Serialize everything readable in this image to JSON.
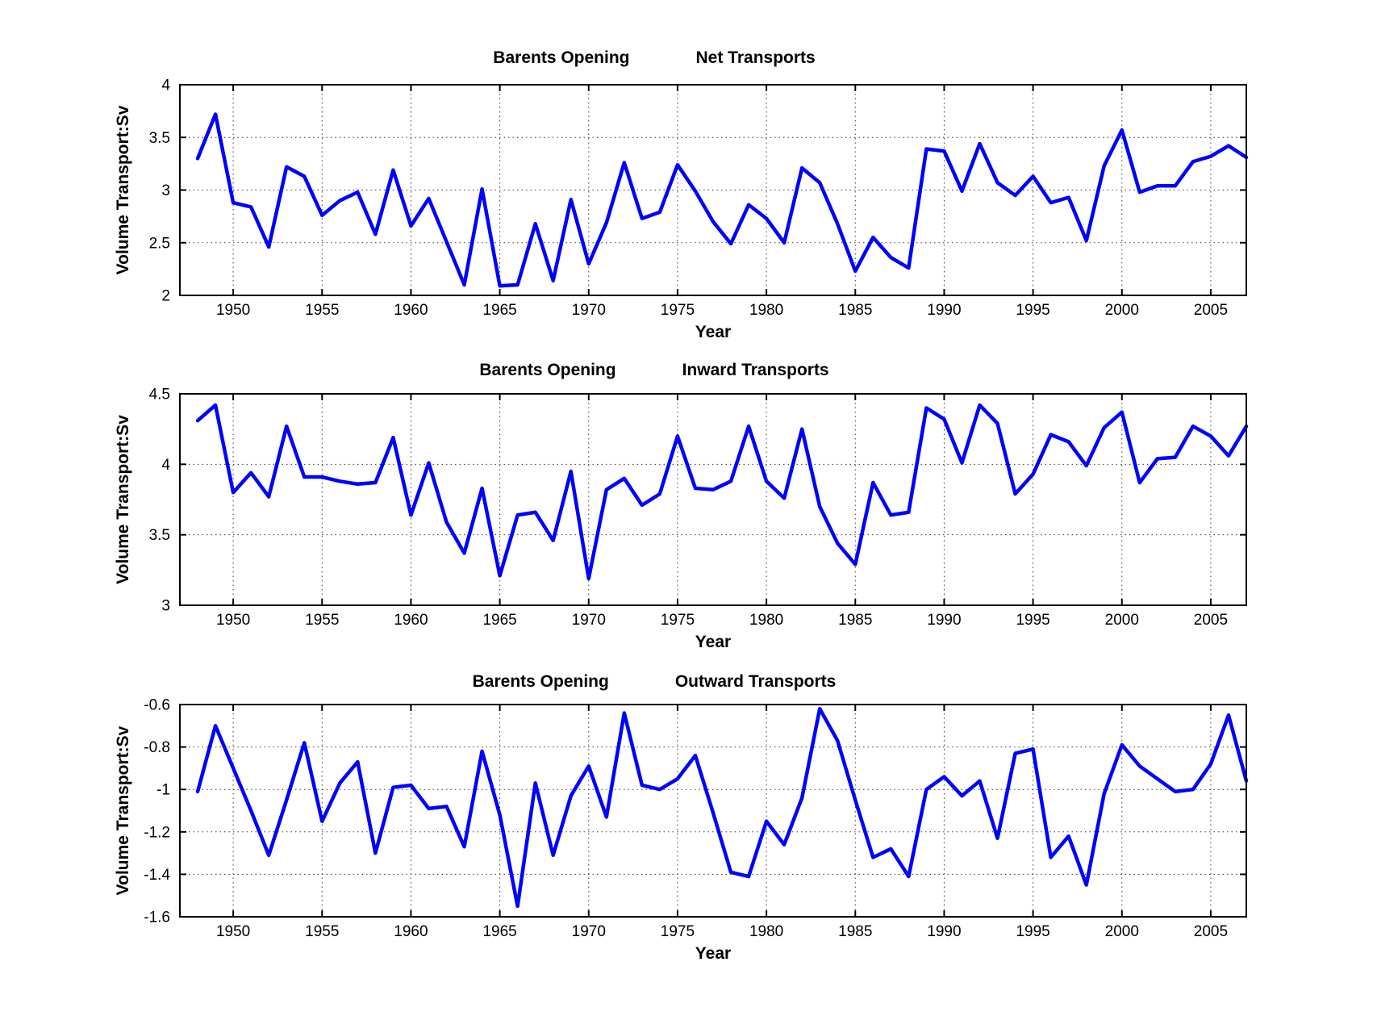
{
  "colors": {
    "background": "#ffffff",
    "line": "#0000ff",
    "axis": "#000000",
    "grid": "#3a3a3a"
  },
  "chart_data": [
    {
      "type": "line",
      "title_left": "Barents Opening",
      "title_right": "Net Transports",
      "xlabel": "Year",
      "ylabel": "Volume Transport:Sv",
      "xlim": [
        1947,
        2007
      ],
      "ylim": [
        2,
        4
      ],
      "grid": true,
      "x_ticks": [
        1950,
        1955,
        1960,
        1965,
        1970,
        1975,
        1980,
        1985,
        1990,
        1995,
        2000,
        2005
      ],
      "y_ticks": [
        4,
        3.5,
        3,
        2.5,
        2
      ],
      "y_tick_labels": [
        "4",
        "3.5",
        "3",
        "2.5",
        "2"
      ],
      "years": [
        1948,
        1949,
        1950,
        1951,
        1952,
        1953,
        1954,
        1955,
        1956,
        1957,
        1958,
        1959,
        1960,
        1961,
        1962,
        1963,
        1964,
        1965,
        1966,
        1967,
        1968,
        1969,
        1970,
        1971,
        1972,
        1973,
        1974,
        1975,
        1976,
        1977,
        1978,
        1979,
        1980,
        1981,
        1982,
        1983,
        1984,
        1985,
        1986,
        1987,
        1988,
        1989,
        1990,
        1991,
        1992,
        1993,
        1994,
        1995,
        1996,
        1997,
        1998,
        1999,
        2000,
        2001,
        2002,
        2003,
        2004,
        2005,
        2006,
        2007
      ],
      "values": [
        3.3,
        3.72,
        2.88,
        2.84,
        2.46,
        3.22,
        3.13,
        2.76,
        2.9,
        2.98,
        2.58,
        3.19,
        2.66,
        2.92,
        2.51,
        2.1,
        3.01,
        2.09,
        2.1,
        2.68,
        2.14,
        2.91,
        2.3,
        2.69,
        3.26,
        2.73,
        2.79,
        3.24,
        2.99,
        2.7,
        2.49,
        2.86,
        2.73,
        2.5,
        3.21,
        3.07,
        2.68,
        2.23,
        2.55,
        2.36,
        2.26,
        3.39,
        3.37,
        2.99,
        3.44,
        3.07,
        2.95,
        3.13,
        2.88,
        2.93,
        2.52,
        3.23,
        3.57,
        2.98,
        3.04,
        3.04,
        3.27,
        3.32,
        3.42,
        3.31
      ]
    },
    {
      "type": "line",
      "title_left": "Barents Opening",
      "title_right": "Inward Transports",
      "xlabel": "Year",
      "ylabel": "Volume Transport:Sv",
      "xlim": [
        1947,
        2007
      ],
      "ylim": [
        3,
        4.5
      ],
      "grid": true,
      "x_ticks": [
        1950,
        1955,
        1960,
        1965,
        1970,
        1975,
        1980,
        1985,
        1990,
        1995,
        2000,
        2005
      ],
      "y_ticks": [
        4.5,
        4,
        3.5,
        3
      ],
      "y_tick_labels": [
        "4.5",
        "4",
        "3.5",
        "3"
      ],
      "years": [
        1948,
        1949,
        1950,
        1951,
        1952,
        1953,
        1954,
        1955,
        1956,
        1957,
        1958,
        1959,
        1960,
        1961,
        1962,
        1963,
        1964,
        1965,
        1966,
        1967,
        1968,
        1969,
        1970,
        1971,
        1972,
        1973,
        1974,
        1975,
        1976,
        1977,
        1978,
        1979,
        1980,
        1981,
        1982,
        1983,
        1984,
        1985,
        1986,
        1987,
        1988,
        1989,
        1990,
        1991,
        1992,
        1993,
        1994,
        1995,
        1996,
        1997,
        1998,
        1999,
        2000,
        2001,
        2002,
        2003,
        2004,
        2005,
        2006,
        2007
      ],
      "values": [
        4.31,
        4.42,
        3.8,
        3.94,
        3.77,
        4.27,
        3.91,
        3.91,
        3.88,
        3.86,
        3.87,
        4.19,
        3.64,
        4.01,
        3.59,
        3.37,
        3.83,
        3.21,
        3.64,
        3.66,
        3.46,
        3.95,
        3.19,
        3.82,
        3.9,
        3.71,
        3.79,
        4.2,
        3.83,
        3.82,
        3.88,
        4.27,
        3.88,
        3.76,
        4.25,
        3.7,
        3.44,
        3.29,
        3.87,
        3.64,
        3.66,
        4.4,
        4.32,
        4.01,
        4.42,
        4.29,
        3.79,
        3.93,
        4.21,
        4.16,
        3.99,
        4.26,
        4.37,
        3.87,
        4.04,
        4.05,
        4.27,
        4.2,
        4.06,
        4.27
      ]
    },
    {
      "type": "line",
      "title_left": "Barents Opening",
      "title_right": "Outward Transports",
      "xlabel": "Year",
      "ylabel": "Volume Transport:Sv",
      "xlim": [
        1947,
        2007
      ],
      "ylim": [
        -1.6,
        -0.6
      ],
      "grid": true,
      "x_ticks": [
        1950,
        1955,
        1960,
        1965,
        1970,
        1975,
        1980,
        1985,
        1990,
        1995,
        2000,
        2005
      ],
      "y_ticks": [
        -0.6,
        -0.8,
        -1,
        -1.2,
        -1.4,
        -1.6
      ],
      "y_tick_labels": [
        "-0.6",
        "-0.8",
        "-1",
        "-1.2",
        "-1.4",
        "-1.6"
      ],
      "years": [
        1948,
        1949,
        1950,
        1951,
        1952,
        1953,
        1954,
        1955,
        1956,
        1957,
        1958,
        1959,
        1960,
        1961,
        1962,
        1963,
        1964,
        1965,
        1966,
        1967,
        1968,
        1969,
        1970,
        1971,
        1972,
        1973,
        1974,
        1975,
        1976,
        1977,
        1978,
        1979,
        1980,
        1981,
        1982,
        1983,
        1984,
        1985,
        1986,
        1987,
        1988,
        1989,
        1990,
        1991,
        1992,
        1993,
        1994,
        1995,
        1996,
        1997,
        1998,
        1999,
        2000,
        2001,
        2002,
        2003,
        2004,
        2005,
        2006,
        2007
      ],
      "values": [
        -1.01,
        -0.7,
        -0.9,
        -1.1,
        -1.31,
        -1.05,
        -0.78,
        -1.15,
        -0.97,
        -0.87,
        -1.3,
        -0.99,
        -0.98,
        -1.09,
        -1.08,
        -1.27,
        -0.82,
        -1.12,
        -1.55,
        -0.97,
        -1.31,
        -1.03,
        -0.89,
        -1.13,
        -0.64,
        -0.98,
        -1.0,
        -0.95,
        -0.84,
        -1.11,
        -1.39,
        -1.41,
        -1.15,
        -1.26,
        -1.04,
        -0.62,
        -0.77,
        -1.05,
        -1.32,
        -1.28,
        -1.41,
        -1.0,
        -0.94,
        -1.03,
        -0.96,
        -1.23,
        -0.83,
        -0.81,
        -1.32,
        -1.22,
        -1.45,
        -1.02,
        -0.79,
        -0.89,
        -0.95,
        -1.01,
        -1.0,
        -0.88,
        -0.65,
        -0.96
      ]
    }
  ]
}
